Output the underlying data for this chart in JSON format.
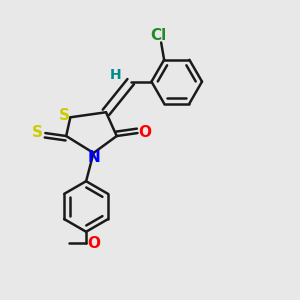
{
  "background_color": "#e8e8e8",
  "bond_color": "#1a1a1a",
  "bond_width": 1.8,
  "atom_colors": {
    "S": "#cccc00",
    "N": "#0000ff",
    "O": "#ff0000",
    "Cl": "#228b22",
    "H": "#008b8b",
    "C": "#1a1a1a"
  },
  "label_fontsize": 11
}
